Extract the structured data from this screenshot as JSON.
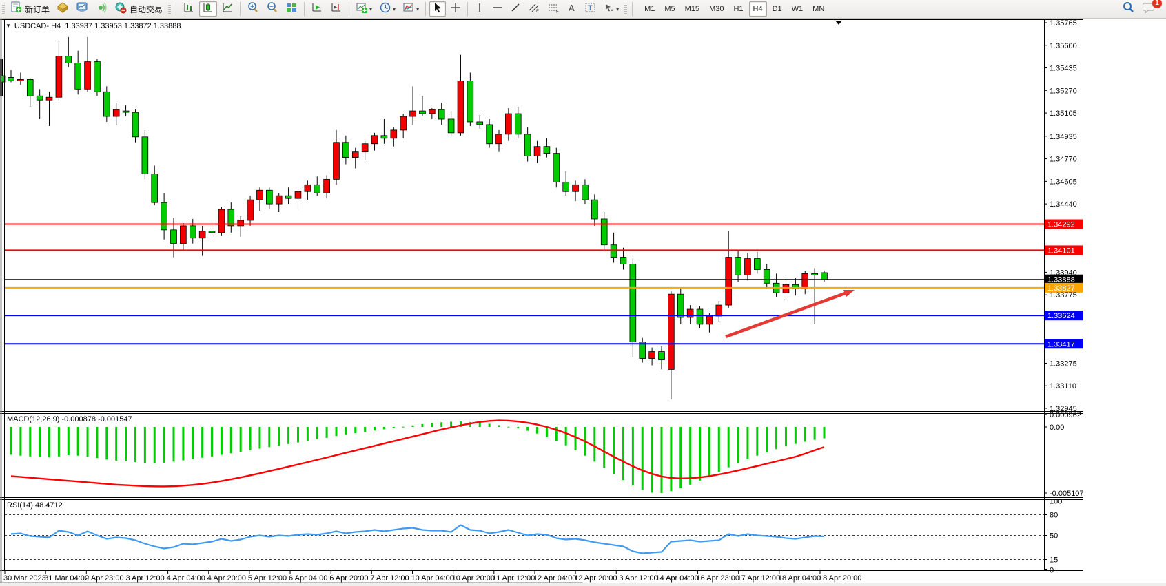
{
  "toolbar": {
    "new_order_label": "新订单",
    "auto_trading_label": "自动交易",
    "timeframes": [
      "M1",
      "M5",
      "M15",
      "M30",
      "H1",
      "H4",
      "D1",
      "W1",
      "MN"
    ],
    "active_timeframe": "H4",
    "notification_count": "1",
    "symbol_dropdown_glyph": "▼"
  },
  "chart_header": {
    "symbol_period": "USDCAD-,H4",
    "ohlc_text": "1.33937 1.33953 1.33872 1.33888"
  },
  "colors": {
    "up_body": "#f20000",
    "down_body": "#00cc00",
    "wick": "#000000",
    "macd_hist": "#00cc00",
    "macd_signal": "#ff0000",
    "rsi_line": "#3f9bf2",
    "line_red": "#ff0000",
    "line_orange": "#ffa500",
    "line_blue": "#0000ff",
    "line_black": "#000000",
    "arrow": "#e53935"
  },
  "chart_data": [
    {
      "type": "candlestick",
      "symbol": "USDCAD",
      "period": "H4",
      "y_axis_ticks": [
        "1.35765",
        "1.35600",
        "1.35435",
        "1.35270",
        "1.35105",
        "1.34935",
        "1.34770",
        "1.34605",
        "1.34440",
        "1.33940",
        "1.33775",
        "1.33275",
        "1.33110",
        "1.32945"
      ],
      "ylim": [
        1.32945,
        1.35765
      ],
      "price_lines": [
        {
          "value": 1.34292,
          "label": "1.34292",
          "color": "#ff0000",
          "width": 2
        },
        {
          "value": 1.34101,
          "label": "1.34101",
          "color": "#ff0000",
          "width": 2
        },
        {
          "value": 1.33888,
          "label": "1.33888",
          "color": "#000000",
          "width": 1
        },
        {
          "value": 1.33827,
          "label": "1.33827",
          "color": "#ffa500",
          "width": 2
        },
        {
          "value": 1.33624,
          "label": "1.33624",
          "color": "#0000ff",
          "width": 2
        },
        {
          "value": 1.33417,
          "label": "1.33417",
          "color": "#0000ff",
          "width": 2
        }
      ],
      "current_price": 1.33888,
      "x_labels": [
        "30 Mar 2023",
        "31 Mar 04:00",
        "2 Apr 23:00",
        "3 Apr 12:00",
        "4 Apr 04:00",
        "4 Apr 20:00",
        "5 Apr 12:00",
        "6 Apr 04:00",
        "6 Apr 20:00",
        "7 Apr 12:00",
        "10 Apr 04:00",
        "10 Apr 20:00",
        "11 Apr 12:00",
        "12 Apr 04:00",
        "12 Apr 20:00",
        "13 Apr 12:00",
        "14 Apr 04:00",
        "16 Apr 23:00",
        "17 Apr 12:00",
        "18 Apr 04:00",
        "18 Apr 20:00"
      ],
      "annotation_arrow": {
        "from": [
          1053,
          489
        ],
        "to": [
          1240,
          421
        ]
      },
      "ohlc": [
        [
          1.35365,
          1.3542,
          1.3533,
          1.3534
        ],
        [
          1.3534,
          1.354,
          1.3531,
          1.3535
        ],
        [
          1.3535,
          1.3536,
          1.3515,
          1.3523
        ],
        [
          1.3523,
          1.3528,
          1.3506,
          1.352
        ],
        [
          1.352,
          1.3526,
          1.3501,
          1.3522
        ],
        [
          1.3522,
          1.3563,
          1.3519,
          1.3552
        ],
        [
          1.3552,
          1.3566,
          1.3544,
          1.3547
        ],
        [
          1.3547,
          1.3556,
          1.3524,
          1.3528
        ],
        [
          1.3528,
          1.3566,
          1.3526,
          1.3548
        ],
        [
          1.3548,
          1.355,
          1.3523,
          1.3526
        ],
        [
          1.3526,
          1.353,
          1.3504,
          1.3508
        ],
        [
          1.3508,
          1.3518,
          1.3502,
          1.3513
        ],
        [
          1.3512,
          1.3516,
          1.3508,
          1.3511
        ],
        [
          1.3511,
          1.3513,
          1.3489,
          1.3493
        ],
        [
          1.3493,
          1.3498,
          1.3462,
          1.3466
        ],
        [
          1.3466,
          1.3472,
          1.3443,
          1.3445
        ],
        [
          1.3445,
          1.3452,
          1.3418,
          1.3425
        ],
        [
          1.3425,
          1.3434,
          1.3405,
          1.3415
        ],
        [
          1.3415,
          1.343,
          1.341,
          1.3428
        ],
        [
          1.3428,
          1.3433,
          1.3415,
          1.3419
        ],
        [
          1.3419,
          1.3428,
          1.3406,
          1.3424
        ],
        [
          1.3424,
          1.3429,
          1.3419,
          1.3423
        ],
        [
          1.3423,
          1.3442,
          1.3421,
          1.344
        ],
        [
          1.344,
          1.3445,
          1.3423,
          1.3428
        ],
        [
          1.3428,
          1.3435,
          1.342,
          1.3432
        ],
        [
          1.3432,
          1.345,
          1.3428,
          1.3447
        ],
        [
          1.3447,
          1.3456,
          1.3439,
          1.3454
        ],
        [
          1.3454,
          1.3456,
          1.344,
          1.3444
        ],
        [
          1.3444,
          1.3452,
          1.3438,
          1.345
        ],
        [
          1.345,
          1.3456,
          1.3444,
          1.3448
        ],
        [
          1.3448,
          1.3455,
          1.344,
          1.3453
        ],
        [
          1.3453,
          1.3461,
          1.3447,
          1.3458
        ],
        [
          1.3458,
          1.3464,
          1.345,
          1.3452
        ],
        [
          1.3452,
          1.3465,
          1.3448,
          1.3462
        ],
        [
          1.3462,
          1.3498,
          1.3458,
          1.3489
        ],
        [
          1.3489,
          1.3494,
          1.3473,
          1.3478
        ],
        [
          1.3478,
          1.3485,
          1.347,
          1.3482
        ],
        [
          1.3482,
          1.349,
          1.3476,
          1.3488
        ],
        [
          1.3488,
          1.3496,
          1.3483,
          1.3494
        ],
        [
          1.3494,
          1.3506,
          1.3488,
          1.3492
        ],
        [
          1.3492,
          1.35,
          1.3486,
          1.3498
        ],
        [
          1.3498,
          1.351,
          1.3492,
          1.3508
        ],
        [
          1.3508,
          1.353,
          1.3502,
          1.3512
        ],
        [
          1.3512,
          1.3523,
          1.3508,
          1.351
        ],
        [
          1.351,
          1.3514,
          1.3506,
          1.3513
        ],
        [
          1.3513,
          1.3518,
          1.3502,
          1.3506
        ],
        [
          1.3506,
          1.3512,
          1.3494,
          1.3496
        ],
        [
          1.3496,
          1.3553,
          1.3494,
          1.3534
        ],
        [
          1.3534,
          1.354,
          1.3501,
          1.3504
        ],
        [
          1.3504,
          1.3509,
          1.3499,
          1.3502
        ],
        [
          1.3502,
          1.3506,
          1.3485,
          1.3488
        ],
        [
          1.3488,
          1.3498,
          1.3482,
          1.3495
        ],
        [
          1.3495,
          1.3514,
          1.349,
          1.351
        ],
        [
          1.351,
          1.3515,
          1.3492,
          1.3495
        ],
        [
          1.3495,
          1.35,
          1.3475,
          1.3479
        ],
        [
          1.3479,
          1.349,
          1.3474,
          1.3486
        ],
        [
          1.3486,
          1.3492,
          1.3478,
          1.3481
        ],
        [
          1.3481,
          1.3485,
          1.3456,
          1.346
        ],
        [
          1.346,
          1.3468,
          1.345,
          1.3453
        ],
        [
          1.3453,
          1.3461,
          1.3446,
          1.3458
        ],
        [
          1.3458,
          1.3462,
          1.3444,
          1.3447
        ],
        [
          1.3447,
          1.3451,
          1.3428,
          1.3433
        ],
        [
          1.3433,
          1.3438,
          1.341,
          1.3414
        ],
        [
          1.3414,
          1.3423,
          1.3401,
          1.3405
        ],
        [
          1.3405,
          1.3412,
          1.3396,
          1.34
        ],
        [
          1.34,
          1.3404,
          1.3332,
          1.3343
        ],
        [
          1.3343,
          1.3346,
          1.3328,
          1.3331
        ],
        [
          1.3331,
          1.3339,
          1.3326,
          1.3336
        ],
        [
          1.3336,
          1.334,
          1.3323,
          1.333
        ],
        [
          1.3323,
          1.338,
          1.3301,
          1.3378
        ],
        [
          1.3378,
          1.3383,
          1.3356,
          1.3361
        ],
        [
          1.3361,
          1.337,
          1.3356,
          1.3367
        ],
        [
          1.3367,
          1.3369,
          1.3353,
          1.3356
        ],
        [
          1.3356,
          1.3364,
          1.335,
          1.3362
        ],
        [
          1.3362,
          1.3373,
          1.3358,
          1.337
        ],
        [
          1.337,
          1.3424,
          1.3368,
          1.3405
        ],
        [
          1.3405,
          1.341,
          1.3387,
          1.3392
        ],
        [
          1.3392,
          1.3408,
          1.3388,
          1.3404
        ],
        [
          1.3404,
          1.3409,
          1.3393,
          1.3396
        ],
        [
          1.3396,
          1.34,
          1.3382,
          1.3386
        ],
        [
          1.3386,
          1.3393,
          1.3376,
          1.3379
        ],
        [
          1.3379,
          1.3388,
          1.3374,
          1.3385
        ],
        [
          1.3385,
          1.339,
          1.3377,
          1.3382
        ],
        [
          1.3382,
          1.3395,
          1.3378,
          1.3393
        ],
        [
          1.3393,
          1.3397,
          1.3356,
          1.3392
        ],
        [
          1.33937,
          1.33953,
          1.33872,
          1.33888
        ]
      ]
    },
    {
      "type": "bar+line",
      "name": "MACD",
      "label": "MACD(12,26,9) -0.000878 -0.001547",
      "current_values": [
        "-0.000878",
        "-0.001547"
      ],
      "y_axis_ticks": [
        "0.000962",
        "0.00",
        "-0.005107"
      ],
      "histogram": [
        -0.00215,
        -0.00222,
        -0.00228,
        -0.00232,
        -0.00236,
        -0.00228,
        -0.00218,
        -0.00222,
        -0.0023,
        -0.0024,
        -0.00252,
        -0.0026,
        -0.00266,
        -0.00272,
        -0.00278,
        -0.0028,
        -0.00276,
        -0.00268,
        -0.00258,
        -0.00248,
        -0.00238,
        -0.00228,
        -0.00216,
        -0.00204,
        -0.00192,
        -0.0018,
        -0.00168,
        -0.00156,
        -0.00144,
        -0.00132,
        -0.0012,
        -0.00108,
        -0.00096,
        -0.00084,
        -0.0007,
        -0.00058,
        -0.00048,
        -0.00038,
        -0.00028,
        -0.00018,
        -8e-05,
        2e-05,
        0.00012,
        0.00022,
        0.0003,
        0.00036,
        0.0004,
        0.00042,
        0.00038,
        0.00032,
        0.00024,
        0.00014,
        2e-05,
        -0.00012,
        -0.0003,
        -0.00052,
        -0.00078,
        -0.00108,
        -0.00142,
        -0.0018,
        -0.00222,
        -0.00268,
        -0.00316,
        -0.00364,
        -0.0041,
        -0.00452,
        -0.00486,
        -0.00508,
        -0.0051,
        -0.00496,
        -0.00474,
        -0.00446,
        -0.00414,
        -0.0038,
        -0.00346,
        -0.00312,
        -0.0028,
        -0.0025,
        -0.00222,
        -0.00196,
        -0.00172,
        -0.0015,
        -0.00131,
        -0.00114,
        -0.00099,
        -0.000878
      ],
      "signal": [
        -0.0038,
        -0.00386,
        -0.00392,
        -0.00398,
        -0.00404,
        -0.0041,
        -0.00416,
        -0.00422,
        -0.00428,
        -0.00434,
        -0.0044,
        -0.00446,
        -0.0045,
        -0.00454,
        -0.00457,
        -0.00459,
        -0.0046,
        -0.00458,
        -0.00454,
        -0.00448,
        -0.0044,
        -0.0043,
        -0.00418,
        -0.00404,
        -0.0039,
        -0.00374,
        -0.00358,
        -0.00341,
        -0.00324,
        -0.00307,
        -0.0029,
        -0.00272,
        -0.00254,
        -0.00236,
        -0.00218,
        -0.002,
        -0.00182,
        -0.00164,
        -0.00146,
        -0.00128,
        -0.0011,
        -0.00092,
        -0.00074,
        -0.00056,
        -0.00038,
        -0.0002,
        -4e-05,
        0.00012,
        0.00026,
        0.00038,
        0.00046,
        0.0005,
        0.00048,
        0.00042,
        0.00032,
        0.00018,
        0.0,
        -0.00022,
        -0.00048,
        -0.00078,
        -0.00112,
        -0.0015,
        -0.0019,
        -0.0023,
        -0.00268,
        -0.00304,
        -0.00336,
        -0.00362,
        -0.00382,
        -0.00394,
        -0.00398,
        -0.00396,
        -0.0039,
        -0.0038,
        -0.00367,
        -0.00352,
        -0.00336,
        -0.00319,
        -0.00302,
        -0.00284,
        -0.00266,
        -0.00248,
        -0.0023,
        -0.00207,
        -0.0018,
        -0.001547
      ]
    },
    {
      "type": "line",
      "name": "RSI",
      "label": "RSI(14) 48.4712",
      "current_value": "48.4712",
      "levels": [
        80,
        50,
        15
      ],
      "y_axis_ticks": [
        "100",
        "80",
        "50",
        "15",
        "0"
      ],
      "values": [
        52,
        53,
        49,
        48,
        47,
        57,
        55,
        50,
        56,
        50,
        45,
        47,
        46,
        43,
        38,
        34,
        31,
        33,
        38,
        37,
        39,
        41,
        45,
        42,
        44,
        48,
        50,
        48,
        50,
        49,
        51,
        52,
        51,
        53,
        56,
        53,
        55,
        56,
        58,
        56,
        58,
        60,
        61,
        58,
        57,
        57,
        55,
        65,
        58,
        57,
        53,
        55,
        58,
        54,
        50,
        52,
        51,
        46,
        44,
        45,
        43,
        40,
        38,
        36,
        34,
        27,
        24,
        25,
        26,
        41,
        42,
        43,
        41,
        42,
        43,
        52,
        49,
        52,
        50,
        49,
        48,
        46,
        45,
        47,
        49,
        48.47
      ]
    }
  ]
}
